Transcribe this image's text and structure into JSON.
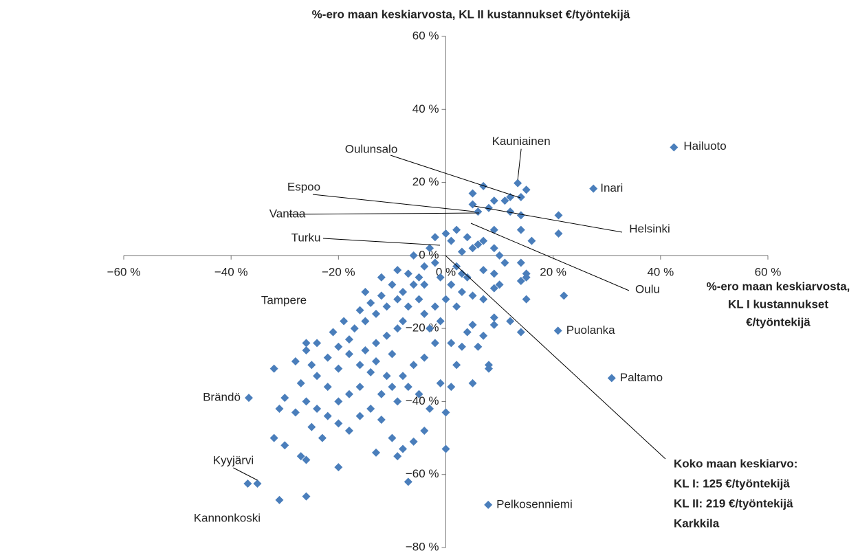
{
  "chart_data": {
    "type": "scatter",
    "title": "%-ero maan keskiarvosta, KL II kustannukset €/työntekijä",
    "x_label": [
      "%-ero maan keskiarvosta,",
      "KL I kustannukset",
      "€/työntekijä"
    ],
    "color": "#4a7ebb",
    "xlim": [
      -60,
      60
    ],
    "ylim": [
      -80,
      60
    ],
    "xticks": [
      {
        "value": -60,
        "label": "−60 %"
      },
      {
        "value": -40,
        "label": "−40 %"
      },
      {
        "value": -20,
        "label": "−20 %"
      },
      {
        "value": 0,
        "label": "0 %"
      },
      {
        "value": 20,
        "label": "20 %"
      },
      {
        "value": 40,
        "label": "40 %"
      },
      {
        "value": 60,
        "label": "60 %"
      }
    ],
    "yticks": [
      {
        "value": -80,
        "label": "−80 %"
      },
      {
        "value": -60,
        "label": "−60 %"
      },
      {
        "value": -40,
        "label": "−40 %"
      },
      {
        "value": -20,
        "label": "−20 %"
      },
      {
        "value": 0,
        "label": "0 %"
      },
      {
        "value": 20,
        "label": "20 %"
      },
      {
        "value": 40,
        "label": "40 %"
      },
      {
        "value": 60,
        "label": "60 %"
      }
    ],
    "x": [
      5,
      7,
      5,
      6,
      9,
      11,
      12,
      14,
      15,
      8,
      12,
      14,
      21,
      21,
      16,
      14,
      9,
      7,
      5,
      3,
      1,
      -2,
      0,
      2,
      4,
      6,
      9,
      10,
      11,
      14,
      15,
      15,
      14,
      9,
      7,
      4,
      3,
      2,
      1,
      3,
      5,
      7,
      9,
      10,
      22,
      15,
      12,
      14,
      9,
      9,
      7,
      5,
      4,
      6,
      3,
      1,
      8,
      8,
      5,
      2,
      -1,
      1,
      0,
      0,
      2,
      0,
      -1,
      -2,
      -2,
      -4,
      -5,
      -6,
      -7,
      -8,
      -9,
      -10,
      -11,
      -12,
      -13,
      -14,
      -15,
      -16,
      -17,
      -18,
      -19,
      -20,
      -21,
      -22,
      -20,
      -18,
      -16,
      -15,
      -13,
      -11,
      -10,
      -9,
      -8,
      -7,
      -5,
      -4,
      -3,
      -2,
      -4,
      -6,
      -8,
      -10,
      -12,
      -14,
      -16,
      -18,
      -20,
      -22,
      -24,
      -25,
      -26,
      -28,
      -27,
      -26,
      -24,
      -22,
      -20,
      -18,
      -16,
      -14,
      -12,
      -10,
      -8,
      -6,
      -4,
      -3,
      -5,
      -7,
      -9,
      -11,
      -13,
      -23,
      -25,
      -28,
      -30,
      -31,
      -32,
      -30,
      -27,
      -26,
      -20,
      -13,
      -9,
      -7,
      -26,
      -31,
      -32,
      -24,
      -26,
      -15,
      -12,
      -6,
      -3,
      -9,
      -4,
      -1
    ],
    "values": [
      17,
      19,
      14,
      12,
      15,
      15,
      16,
      16,
      18,
      13,
      12,
      11,
      11,
      6,
      4,
      7,
      7,
      4,
      2,
      1,
      4,
      5,
      6,
      7,
      5,
      3,
      2,
      0,
      -2,
      -2,
      -5,
      -6,
      -7,
      -5,
      -4,
      -6,
      -5,
      -3,
      -8,
      -10,
      -11,
      -12,
      -9,
      -8,
      -11,
      -12,
      -18,
      -21,
      -17,
      -19,
      -22,
      -19,
      -21,
      -25,
      -25,
      -24,
      -30,
      -31,
      -35,
      -30,
      -35,
      -36,
      -43,
      -53,
      -14,
      -12,
      -18,
      -14,
      -2,
      -3,
      -6,
      -8,
      -5,
      -10,
      -12,
      -8,
      -14,
      -11,
      -16,
      -13,
      -18,
      -15,
      -20,
      -23,
      -18,
      -25,
      -21,
      -28,
      -31,
      -27,
      -30,
      -26,
      -24,
      -22,
      -27,
      -20,
      -18,
      -14,
      -12,
      -16,
      -20,
      -24,
      -28,
      -30,
      -33,
      -36,
      -38,
      -32,
      -36,
      -38,
      -40,
      -36,
      -33,
      -30,
      -26,
      -29,
      -35,
      -40,
      -42,
      -44,
      -46,
      -48,
      -44,
      -42,
      -45,
      -50,
      -53,
      -51,
      -48,
      -42,
      -38,
      -36,
      -40,
      -33,
      -29,
      -50,
      -47,
      -43,
      -39,
      -42,
      -50,
      -52,
      -55,
      -56,
      -58,
      -54,
      -55,
      -62,
      -66,
      -67,
      -31,
      -24,
      -24,
      -10,
      -6,
      0,
      2,
      -4,
      -8,
      -6
    ],
    "labeled_points": [
      {
        "label": "Hailuoto",
        "x": 42.5,
        "y": 29.6
      },
      {
        "label": "Inari",
        "x": 27.5,
        "y": 18.3
      },
      {
        "label": "Kauniainen",
        "x": 13.4,
        "y": 19.8
      },
      {
        "label": "Puolanka",
        "x": 20.9,
        "y": -20.6
      },
      {
        "label": "Paltamo",
        "x": 30.9,
        "y": -33.6
      },
      {
        "label": "Pelkosenniemi",
        "x": 7.9,
        "y": -68.3
      },
      {
        "label": "Brändö",
        "x": -36.7,
        "y": -39
      },
      {
        "label": "Kyyjärvi",
        "x": -35.1,
        "y": -62.5
      },
      {
        "label": "Kannonkoski",
        "x": -36.9,
        "y": -62.5
      }
    ],
    "annotations": [
      "Oulunsalo",
      "Espoo",
      "Vantaa",
      "Helsinki",
      "Turku",
      "Oulu",
      "Tampere"
    ],
    "average_note": [
      "Koko maan keskiarvo:",
      "KL  I: 125 €/työntekijä",
      "KL II: 219 €/työntekijä",
      "Karkkila"
    ]
  }
}
